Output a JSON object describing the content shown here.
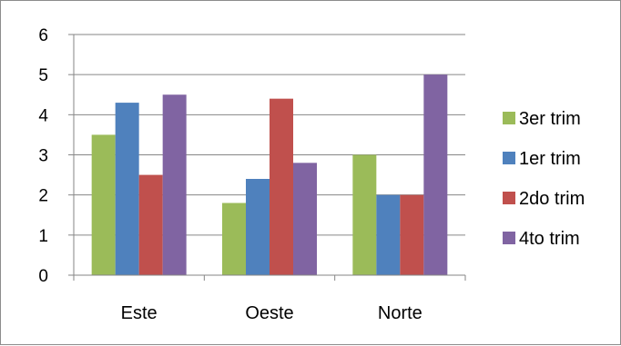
{
  "chart_data": {
    "type": "bar",
    "categories": [
      "Este",
      "Oeste",
      "Norte"
    ],
    "series": [
      {
        "name": "3er trim",
        "values": [
          3.5,
          1.8,
          3.0
        ],
        "color": "#9bbb59"
      },
      {
        "name": "1er trim",
        "values": [
          4.3,
          2.4,
          2.0
        ],
        "color": "#4f81bd"
      },
      {
        "name": "2do trim",
        "values": [
          2.5,
          4.4,
          2.0
        ],
        "color": "#c0504d"
      },
      {
        "name": "4to trim",
        "values": [
          4.5,
          2.8,
          5.0
        ],
        "color": "#8064a2"
      }
    ],
    "ylim": [
      0,
      6
    ],
    "yticks": [
      "0",
      "1",
      "2",
      "3",
      "4",
      "5",
      "6"
    ],
    "grid": true,
    "legend_position": "right",
    "title": "",
    "xlabel": "",
    "ylabel": ""
  }
}
